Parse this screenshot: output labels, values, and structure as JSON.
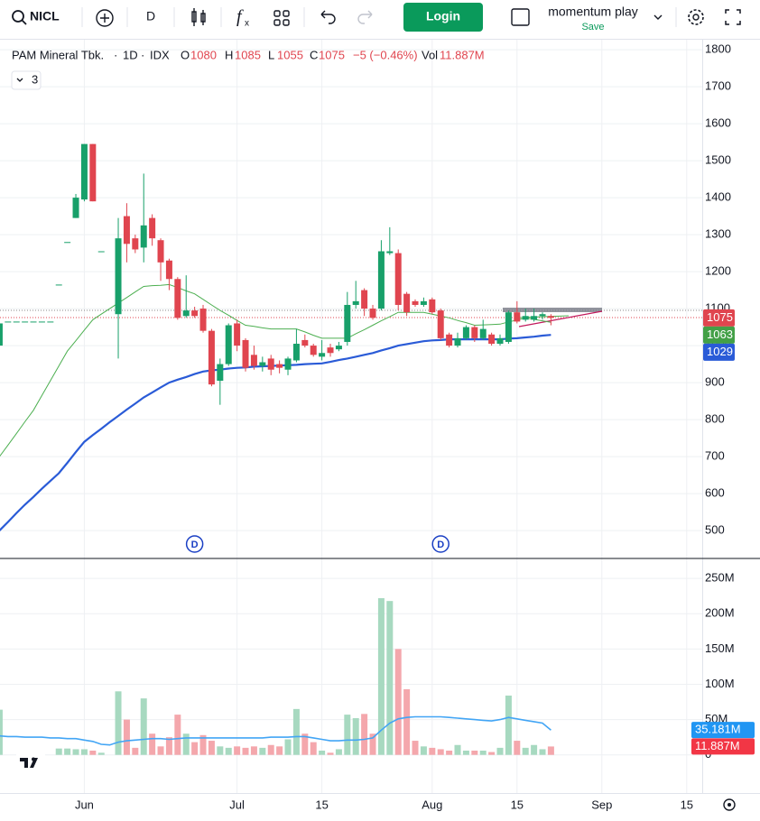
{
  "toolbar": {
    "symbol": "NICL",
    "interval": "D",
    "login": "Login",
    "layout_name": "momentum play",
    "save": "Save"
  },
  "legend": {
    "name": "PAM Mineral Tbk.",
    "separator": "·",
    "interval": "1D",
    "exchange": "IDX",
    "open_label": "O",
    "high_label": "H",
    "low_label": "L",
    "close_label": "C",
    "change": "−5 (−0.46%)",
    "volume_label": "Vol",
    "indicators": "3"
  },
  "markers": [
    {
      "label": "D",
      "x": 23
    },
    {
      "label": "D",
      "x": 52
    }
  ],
  "chart_data": [
    {
      "type": "candlestick",
      "up_color": "#18a06a",
      "down_color": "#e0454f",
      "ylim": [
        427,
        1827
      ],
      "yticks": [
        500,
        600,
        700,
        800,
        900,
        1000,
        1100,
        1200,
        1300,
        1400,
        1500,
        1600,
        1700,
        1800
      ],
      "grid": true,
      "open": [
        1000,
        1065,
        1065,
        1065,
        1065,
        1065,
        1065,
        1165,
        1280,
        1345,
        1395,
        1545,
        1255,
        null,
        1085,
        1350,
        1290,
        1265,
        1345,
        1285,
        1230,
        1180,
        1080,
        1095,
        1100,
        1040,
        905,
        950,
        1060,
        1015,
        975,
        945,
        965,
        950,
        935,
        960,
        1015,
        1000,
        970,
        995,
        990,
        1010,
        1110,
        1150,
        1100,
        1100,
        1250,
        1250,
        1140,
        1120,
        1110,
        1125,
        1095,
        1030,
        1000,
        1020,
        1050,
        1020,
        1030,
        1005,
        1010,
        1090,
        1070,
        1070,
        1080,
        1080
      ],
      "high": [
        1065,
        1065,
        1065,
        1065,
        1065,
        1065,
        1065,
        1165,
        1280,
        1410,
        1545,
        1545,
        1255,
        null,
        1345,
        1385,
        1300,
        1465,
        1355,
        1290,
        1235,
        1185,
        1190,
        1105,
        1110,
        1045,
        965,
        1060,
        1070,
        1020,
        1000,
        970,
        975,
        960,
        970,
        1045,
        1030,
        1005,
        1015,
        1005,
        1010,
        1145,
        1175,
        1155,
        1110,
        1285,
        1320,
        1260,
        1145,
        1125,
        1130,
        1130,
        1100,
        1035,
        1035,
        1055,
        1055,
        1070,
        1035,
        1030,
        1095,
        1120,
        1100,
        1100,
        1090,
        1085
      ],
      "low": [
        980,
        1065,
        1065,
        1065,
        1065,
        1065,
        1065,
        1165,
        1280,
        1345,
        1390,
        1390,
        1255,
        null,
        965,
        1225,
        1250,
        1225,
        1270,
        1175,
        1150,
        1070,
        1075,
        1075,
        1035,
        890,
        840,
        945,
        985,
        930,
        935,
        930,
        920,
        925,
        920,
        955,
        995,
        970,
        960,
        970,
        985,
        1000,
        1100,
        1080,
        1070,
        1095,
        1245,
        1095,
        1080,
        1105,
        1105,
        1085,
        1015,
        995,
        995,
        1015,
        1010,
        1015,
        1000,
        1000,
        1005,
        1060,
        1065,
        1065,
        1070,
        1055
      ],
      "close": [
        1060,
        1065,
        1065,
        1065,
        1065,
        1065,
        1065,
        1165,
        1280,
        1400,
        1545,
        1390,
        1255,
        null,
        1290,
        1275,
        1260,
        1325,
        1290,
        1225,
        1180,
        1075,
        1095,
        1080,
        1040,
        895,
        950,
        1055,
        1000,
        940,
        945,
        955,
        935,
        940,
        965,
        1005,
        1000,
        975,
        980,
        980,
        1000,
        1110,
        1120,
        1100,
        1075,
        1255,
        1255,
        1110,
        1090,
        1110,
        1120,
        1090,
        1020,
        1000,
        1020,
        1050,
        1020,
        1045,
        1005,
        1020,
        1090,
        1065,
        1080,
        1080,
        1085,
        1075
      ],
      "lines": [
        {
          "color": "#4caf50",
          "width": 1,
          "values": [
            700,
            731,
            762,
            794,
            825,
            865,
            905,
            945,
            985,
            1013,
            1042,
            1070,
            1085,
            1100,
            1115,
            1130,
            1145,
            1160,
            1162,
            1163,
            1165,
            1157,
            1148,
            1140,
            1125,
            1110,
            1095,
            1082,
            1068,
            1055,
            1052,
            1048,
            1045,
            1045,
            1045,
            1045,
            1037,
            1028,
            1020,
            1020,
            1020,
            1020,
            1032,
            1043,
            1055,
            1067,
            1078,
            1090,
            1090,
            1090,
            1090,
            1085,
            1080,
            1075,
            1068,
            1062,
            1055,
            1056,
            1057,
            1058,
            1064,
            1069,
            1075,
            1071,
            1067,
            1063
          ]
        },
        {
          "color": "#2a5bd7",
          "width": 2.2,
          "values": [
            500,
            523,
            547,
            570,
            591,
            613,
            634,
            655,
            683,
            712,
            740,
            758,
            775,
            793,
            810,
            827,
            843,
            860,
            873,
            887,
            900,
            908,
            915,
            923,
            930,
            933,
            935,
            938,
            940,
            941,
            943,
            944,
            945,
            946,
            947,
            948,
            950,
            951,
            952,
            956,
            961,
            965,
            970,
            975,
            980,
            987,
            993,
            1000,
            1004,
            1008,
            1012,
            1014,
            1015,
            1017,
            1017,
            1017,
            1017,
            1017,
            1017,
            1017,
            1019,
            1020,
            1022,
            1024,
            1027,
            1029
          ]
        }
      ]
    },
    {
      "type": "bar",
      "up_color": "#a7d9c0",
      "down_color": "#f4a7ac",
      "ylim": [
        -17,
        277
      ],
      "yticks": [
        0,
        {
          "value": 50,
          "label": "50M"
        },
        {
          "value": 100,
          "label": "100M"
        },
        {
          "value": 150,
          "label": "150M"
        },
        {
          "value": 200,
          "label": "200M"
        },
        {
          "value": 250,
          "label": "250M"
        }
      ],
      "xlim": [
        0.06,
        82.83
      ],
      "xticks": [
        {
          "value": 10,
          "label": "Jun"
        },
        {
          "value": 28,
          "label": "Jul"
        },
        {
          "value": 38,
          "label": "15"
        },
        {
          "value": 51,
          "label": "Aug"
        },
        {
          "value": 61,
          "label": "15"
        },
        {
          "value": 71,
          "label": "Sep"
        },
        {
          "value": 81,
          "label": "15"
        }
      ],
      "values": [
        64,
        0,
        0,
        0,
        0,
        0,
        0,
        9,
        9,
        8,
        8,
        6,
        3,
        null,
        90,
        50,
        10,
        80,
        30,
        12,
        25,
        57,
        30,
        18,
        28,
        20,
        12,
        10,
        12,
        10,
        12,
        10,
        14,
        12,
        22,
        65,
        30,
        18,
        6,
        3,
        8,
        57,
        52,
        58,
        30,
        222,
        218,
        150,
        93,
        20,
        12,
        10,
        8,
        6,
        14,
        6,
        6,
        6,
        4,
        10,
        84,
        20,
        10,
        14,
        8,
        11.887
      ],
      "value_labels_index": 65,
      "value_label": "11.887M",
      "ma": {
        "color": "#42a5f5",
        "values": [
          27,
          26,
          26,
          25,
          25,
          25,
          24,
          24,
          23,
          23,
          21,
          19,
          15,
          14,
          18,
          20,
          21,
          22,
          23,
          23,
          22,
          23,
          24,
          24,
          24,
          24,
          24,
          24,
          24,
          24,
          24,
          24,
          25,
          25,
          25,
          26,
          26,
          24,
          22,
          20,
          20,
          21,
          21,
          22,
          24,
          35,
          45,
          51,
          53,
          54,
          54,
          54,
          54,
          53,
          52,
          51,
          50,
          49,
          48,
          50,
          53,
          51,
          49,
          47,
          45,
          35.181
        ],
        "value_label": "35.181M"
      }
    }
  ]
}
